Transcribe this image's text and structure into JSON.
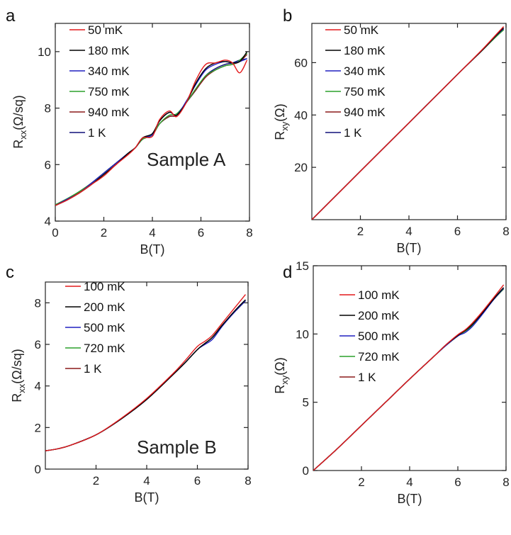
{
  "chart_data": [
    {
      "panel": "a",
      "type": "line",
      "xlabel": "B(T)",
      "ylabel": "R_xx(Ω/sq)",
      "xlim": [
        0,
        8
      ],
      "ylim": [
        4,
        11
      ],
      "xticks": [
        0,
        2,
        4,
        6,
        8
      ],
      "yticks": [
        4,
        6,
        8,
        10
      ],
      "annotation": "Sample A",
      "legend_position": "top-left",
      "series": [
        {
          "name": "50 mK",
          "color": "#e41a1c",
          "x": [
            0,
            0.5,
            1,
            1.5,
            2,
            2.5,
            3,
            3.3,
            3.6,
            4.0,
            4.3,
            4.7,
            5.0,
            5.4,
            5.8,
            6.2,
            6.6,
            7.0,
            7.3,
            7.6,
            7.9
          ],
          "y": [
            4.55,
            4.75,
            5.0,
            5.3,
            5.6,
            6.0,
            6.35,
            6.6,
            6.95,
            7.0,
            7.6,
            7.9,
            7.7,
            8.2,
            9.0,
            9.55,
            9.6,
            9.7,
            9.6,
            9.25,
            9.7
          ]
        },
        {
          "name": "180 mK",
          "color": "#000000",
          "x": [
            0,
            0.5,
            1,
            1.5,
            2,
            2.5,
            3,
            3.3,
            3.6,
            4.0,
            4.3,
            4.7,
            5.0,
            5.4,
            5.8,
            6.2,
            6.6,
            7.0,
            7.3,
            7.6,
            7.9
          ],
          "y": [
            4.55,
            4.75,
            5.0,
            5.3,
            5.65,
            6.0,
            6.4,
            6.6,
            6.95,
            7.1,
            7.55,
            7.85,
            7.75,
            8.2,
            8.9,
            9.4,
            9.6,
            9.65,
            9.6,
            9.65,
            10.0
          ]
        },
        {
          "name": "340 mK",
          "color": "#2020c0",
          "x": [
            0,
            0.5,
            1,
            1.5,
            2,
            2.5,
            3,
            3.3,
            3.6,
            4.0,
            4.3,
            4.7,
            5.0,
            5.4,
            5.8,
            6.2,
            6.6,
            7.0,
            7.3,
            7.6,
            7.9
          ],
          "y": [
            4.55,
            4.78,
            5.0,
            5.35,
            5.7,
            6.05,
            6.4,
            6.6,
            6.95,
            7.05,
            7.55,
            7.85,
            7.75,
            8.25,
            8.85,
            9.35,
            9.55,
            9.65,
            9.6,
            9.65,
            9.75
          ]
        },
        {
          "name": "750 mK",
          "color": "#2ca02c",
          "x": [
            0,
            0.5,
            1,
            1.5,
            2,
            2.5,
            3,
            3.3,
            3.6,
            4.0,
            4.3,
            4.7,
            5.0,
            5.4,
            5.8,
            6.2,
            6.6,
            7.0,
            7.3,
            7.6,
            7.9
          ],
          "y": [
            4.58,
            4.8,
            5.05,
            5.35,
            5.7,
            6.05,
            6.4,
            6.6,
            6.9,
            7.05,
            7.45,
            7.75,
            7.8,
            8.2,
            8.7,
            9.15,
            9.35,
            9.5,
            9.55,
            9.7,
            9.95
          ]
        },
        {
          "name": "940 mK",
          "color": "#8b1a1a",
          "x": [
            0,
            0.5,
            1,
            1.5,
            2,
            2.5,
            3,
            3.3,
            3.6,
            4.0,
            4.3,
            4.7,
            5.0,
            5.4,
            5.8,
            6.2,
            6.6,
            7.0,
            7.3,
            7.6,
            7.9
          ],
          "y": [
            4.55,
            4.78,
            5.05,
            5.35,
            5.7,
            6.05,
            6.4,
            6.6,
            6.9,
            7.05,
            7.45,
            7.7,
            7.75,
            8.2,
            8.65,
            9.1,
            9.35,
            9.5,
            9.55,
            9.65,
            9.9
          ]
        },
        {
          "name": "1 K",
          "color": "#10107a",
          "x": [
            0,
            0.5,
            1,
            1.5,
            2,
            2.5,
            3,
            3.3,
            3.6,
            4.0,
            4.3,
            4.7,
            5.0,
            5.4,
            5.8,
            6.2,
            6.6,
            7.0,
            7.3,
            7.6,
            7.9
          ],
          "y": [
            4.55,
            4.78,
            5.05,
            5.35,
            5.7,
            6.05,
            6.4,
            6.6,
            6.9,
            7.05,
            7.45,
            7.7,
            7.75,
            8.2,
            8.65,
            9.15,
            9.4,
            9.55,
            9.6,
            9.7,
            9.75
          ]
        }
      ]
    },
    {
      "panel": "b",
      "type": "line",
      "xlabel": "B(T)",
      "ylabel": "R_xy(Ω)",
      "xlim": [
        0,
        8
      ],
      "ylim": [
        0,
        75
      ],
      "xticks": [
        2,
        4,
        6,
        8
      ],
      "yticks": [
        20,
        40,
        60
      ],
      "legend_position": "top-left",
      "series": [
        {
          "name": "50 mK",
          "color": "#e41a1c",
          "x": [
            0,
            2,
            4,
            6,
            7,
            7.6,
            7.9
          ],
          "y": [
            0,
            18.5,
            37,
            55.5,
            64.8,
            70.8,
            73.8
          ]
        },
        {
          "name": "180 mK",
          "color": "#000000",
          "x": [
            0,
            2,
            4,
            6,
            7,
            7.6,
            7.9
          ],
          "y": [
            0,
            18.5,
            37,
            55.5,
            64.6,
            70.5,
            73.3
          ]
        },
        {
          "name": "340 mK",
          "color": "#2020c0",
          "x": [
            0,
            2,
            4,
            6,
            7,
            7.6,
            7.9
          ],
          "y": [
            0,
            18.5,
            37,
            55.5,
            64.6,
            70.4,
            73.0
          ]
        },
        {
          "name": "750 mK",
          "color": "#2ca02c",
          "x": [
            0,
            2,
            4,
            6,
            7,
            7.6,
            7.9
          ],
          "y": [
            0,
            18.5,
            37,
            55.5,
            64.5,
            70.0,
            72.5
          ]
        },
        {
          "name": "940 mK",
          "color": "#8b1a1a",
          "x": [
            0,
            2,
            4,
            6,
            7,
            7.6,
            7.9
          ],
          "y": [
            0,
            18.5,
            37,
            55.5,
            64.5,
            70.1,
            72.7
          ]
        },
        {
          "name": "1 K",
          "color": "#10107a",
          "x": [
            0,
            2,
            4,
            6,
            7,
            7.6,
            7.9
          ],
          "y": [
            0,
            18.5,
            37,
            55.5,
            64.5,
            70.2,
            72.8
          ]
        }
      ]
    },
    {
      "panel": "c",
      "type": "line",
      "xlabel": "B(T)",
      "ylabel": "R_xx(Ω/sq)",
      "xlim": [
        0,
        8
      ],
      "ylim": [
        0,
        9
      ],
      "xticks": [
        2,
        4,
        6,
        8
      ],
      "yticks": [
        0,
        2,
        4,
        6,
        8
      ],
      "annotation": "Sample B",
      "legend_position": "top-left",
      "series": [
        {
          "name": "100 mK",
          "color": "#e41a1c",
          "x": [
            0,
            0.5,
            1,
            2,
            3,
            4,
            5,
            5.5,
            6,
            6.3,
            6.6,
            7,
            7.5,
            7.9
          ],
          "y": [
            0.88,
            0.98,
            1.15,
            1.65,
            2.45,
            3.4,
            4.55,
            5.2,
            5.9,
            6.15,
            6.45,
            7.05,
            7.8,
            8.4
          ]
        },
        {
          "name": "200 mK",
          "color": "#000000",
          "x": [
            0,
            0.5,
            1,
            2,
            3,
            4,
            5,
            5.5,
            6,
            6.3,
            6.6,
            7,
            7.5,
            7.9
          ],
          "y": [
            0.88,
            0.98,
            1.15,
            1.65,
            2.42,
            3.35,
            4.5,
            5.1,
            5.75,
            6.05,
            6.35,
            6.95,
            7.65,
            8.15
          ]
        },
        {
          "name": "500 mK",
          "color": "#2020c0",
          "x": [
            0,
            0.5,
            1,
            2,
            3,
            4,
            5,
            5.5,
            6,
            6.3,
            6.6,
            7,
            7.5,
            7.9
          ],
          "y": [
            0.88,
            0.98,
            1.15,
            1.65,
            2.42,
            3.35,
            4.5,
            5.1,
            5.75,
            6.0,
            6.25,
            6.9,
            7.6,
            8.1
          ]
        },
        {
          "name": "720 mK",
          "color": "#2ca02c",
          "x": [
            0,
            0.5,
            1,
            2,
            3,
            4,
            5,
            5.5,
            6,
            6.3,
            6.6,
            7,
            7.5,
            7.9
          ],
          "y": [
            0.88,
            0.98,
            1.15,
            1.65,
            2.42,
            3.35,
            4.5,
            5.1,
            5.75,
            6.05,
            6.35,
            6.95,
            7.6,
            8.1
          ]
        },
        {
          "name": "1 K",
          "color": "#8b1a1a",
          "x": [
            0,
            0.5,
            1,
            2,
            3,
            4,
            5,
            5.5,
            6,
            6.3,
            6.6,
            7,
            7.5,
            7.9
          ],
          "y": [
            0.88,
            0.98,
            1.15,
            1.65,
            2.42,
            3.35,
            4.5,
            5.1,
            5.75,
            6.05,
            6.35,
            6.95,
            7.6,
            8.1
          ]
        }
      ]
    },
    {
      "panel": "d",
      "type": "line",
      "xlabel": "B(T)",
      "ylabel": "R_xy(Ω)",
      "xlim": [
        0,
        8
      ],
      "ylim": [
        0,
        15
      ],
      "xticks": [
        2,
        4,
        6,
        8
      ],
      "yticks": [
        0,
        5,
        10,
        15
      ],
      "legend_position": "left",
      "series": [
        {
          "name": "100 mK",
          "color": "#e41a1c",
          "x": [
            0,
            1,
            2,
            3,
            4,
            5,
            5.5,
            6,
            6.3,
            6.6,
            7,
            7.5,
            7.9
          ],
          "y": [
            0,
            1.6,
            3.3,
            5.0,
            6.7,
            8.35,
            9.2,
            9.95,
            10.3,
            10.8,
            11.6,
            12.7,
            13.6
          ]
        },
        {
          "name": "200 mK",
          "color": "#000000",
          "x": [
            0,
            1,
            2,
            3,
            4,
            5,
            5.5,
            6,
            6.3,
            6.6,
            7,
            7.5,
            7.9
          ],
          "y": [
            0,
            1.6,
            3.3,
            5.0,
            6.7,
            8.35,
            9.2,
            9.9,
            10.25,
            10.7,
            11.5,
            12.6,
            13.4
          ]
        },
        {
          "name": "500 mK",
          "color": "#2020c0",
          "x": [
            0,
            1,
            2,
            3,
            4,
            5,
            5.5,
            6,
            6.3,
            6.6,
            7,
            7.5,
            7.9
          ],
          "y": [
            0,
            1.6,
            3.3,
            5.0,
            6.7,
            8.35,
            9.15,
            9.85,
            10.1,
            10.55,
            11.4,
            12.55,
            13.35
          ]
        },
        {
          "name": "720 mK",
          "color": "#2ca02c",
          "x": [
            0,
            1,
            2,
            3,
            4,
            5,
            5.5,
            6,
            6.3,
            6.6,
            7,
            7.5,
            7.9
          ],
          "y": [
            0,
            1.6,
            3.3,
            5.0,
            6.7,
            8.35,
            9.15,
            9.85,
            10.2,
            10.6,
            11.45,
            12.55,
            13.3
          ]
        },
        {
          "name": "1 K",
          "color": "#8b1a1a",
          "x": [
            0,
            1,
            2,
            3,
            4,
            5,
            5.5,
            6,
            6.3,
            6.6,
            7,
            7.5,
            7.9
          ],
          "y": [
            0,
            1.6,
            3.3,
            5.0,
            6.7,
            8.35,
            9.15,
            9.85,
            10.2,
            10.6,
            11.45,
            12.55,
            13.3
          ]
        }
      ]
    }
  ]
}
